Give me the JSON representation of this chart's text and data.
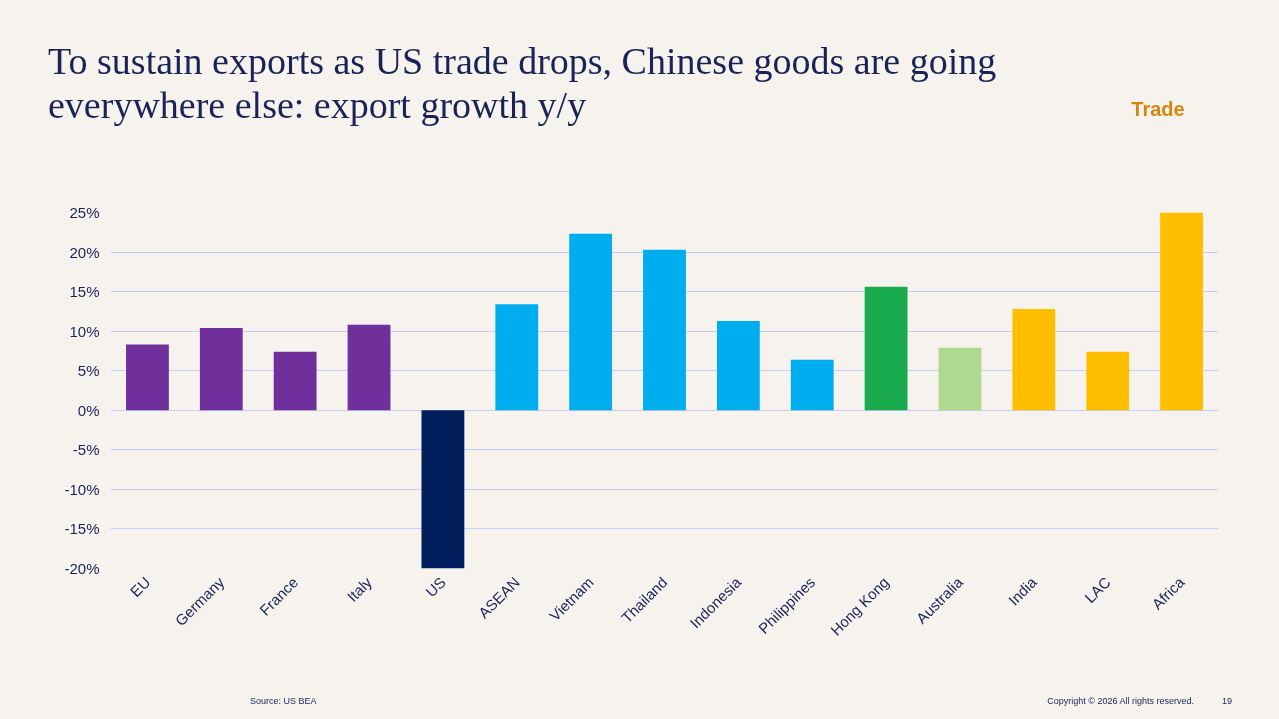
{
  "chart_data": {
    "type": "bar",
    "title": "To sustain exports as US trade drops, Chinese goods are going everywhere else: export growth y/y",
    "categories": [
      "EU",
      "Germany",
      "France",
      "Italy",
      "US",
      "ASEAN",
      "Vietnam",
      "Thailand",
      "Indonesia",
      "Philippines",
      "Hong Kong",
      "Australia",
      "India",
      "LAC",
      "Africa"
    ],
    "values": [
      8.3,
      10.4,
      7.4,
      10.8,
      -20,
      13.4,
      22.3,
      20.3,
      11.3,
      6.4,
      15.6,
      7.9,
      12.8,
      7.4,
      25
    ],
    "colors": [
      "#70309c",
      "#70309c",
      "#70309c",
      "#70309c",
      "#001e5c",
      "#00aeef",
      "#00aeef",
      "#00aeef",
      "#00aeef",
      "#00aeef",
      "#1aab4f",
      "#b0d990",
      "#ffbe00",
      "#ffbe00",
      "#ffbe00"
    ],
    "ylim": [
      -20,
      25
    ],
    "yticks": [
      {
        "value": -20,
        "label": "-20%"
      },
      {
        "value": -15,
        "label": "-15%"
      },
      {
        "value": -10,
        "label": "-10%"
      },
      {
        "value": -5,
        "label": "-5%"
      },
      {
        "value": 0,
        "label": "0%"
      },
      {
        "value": 5,
        "label": "5%"
      },
      {
        "value": 10,
        "label": "10%"
      },
      {
        "value": 15,
        "label": "15%"
      },
      {
        "value": 20,
        "label": "20%"
      },
      {
        "value": 25,
        "label": "25%"
      }
    ],
    "grid": "y",
    "annotations": [
      "Trade",
      "Source: US BEA",
      "Copyright © 2026 All rights reserved.",
      "19"
    ]
  }
}
